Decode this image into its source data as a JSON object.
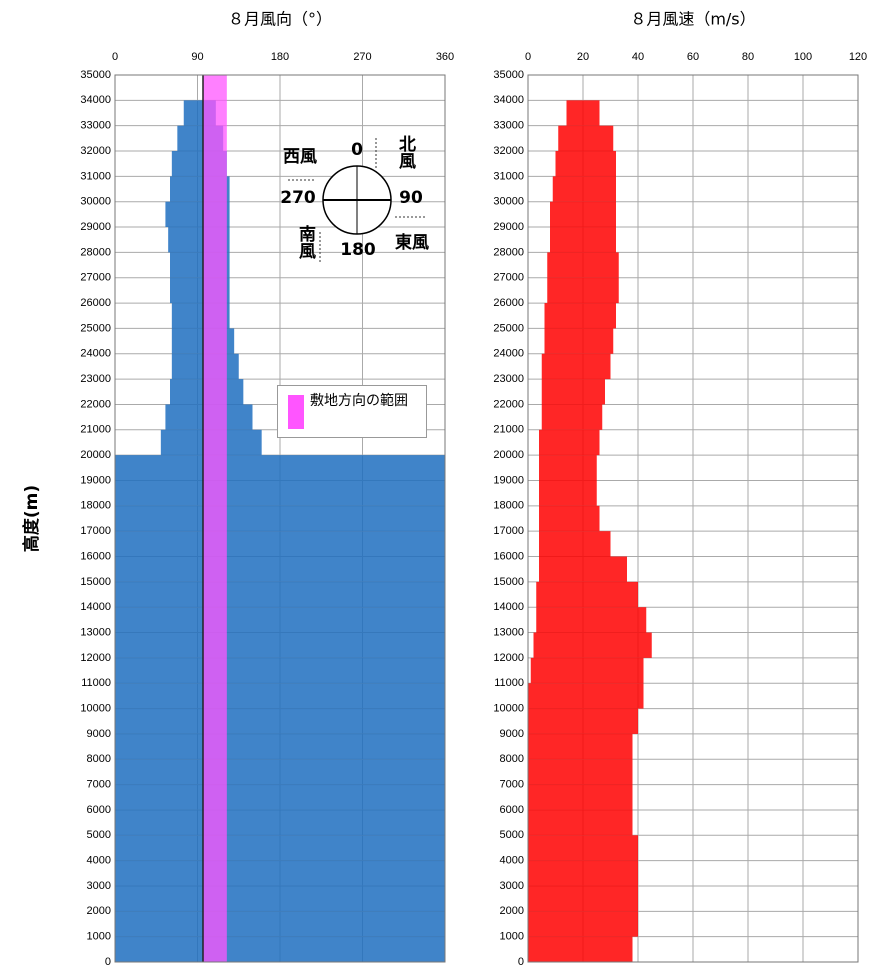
{
  "chart_data": [
    {
      "type": "range-scatter",
      "title": "８月風向（°）",
      "ylabel": "高度(m)",
      "xlim": [
        0,
        360
      ],
      "xticks": [
        0,
        90,
        180,
        270,
        360
      ],
      "ylim": [
        0,
        35000
      ],
      "yticks": [
        0,
        1000,
        2000,
        3000,
        4000,
        5000,
        6000,
        7000,
        8000,
        9000,
        10000,
        11000,
        12000,
        13000,
        14000,
        15000,
        16000,
        17000,
        18000,
        19000,
        20000,
        21000,
        22000,
        23000,
        24000,
        25000,
        26000,
        27000,
        28000,
        29000,
        30000,
        31000,
        32000,
        33000,
        34000,
        35000
      ],
      "grid": true,
      "color": "#1f6fc0",
      "y": [
        500,
        1500,
        2500,
        3500,
        4500,
        5500,
        6500,
        7500,
        8500,
        9500,
        10500,
        11500,
        12500,
        13500,
        14500,
        15500,
        16500,
        17500,
        18500,
        19500,
        20500,
        21500,
        22500,
        23500,
        24500,
        25500,
        26500,
        27500,
        28500,
        29500,
        30500,
        31500,
        32500,
        33500
      ],
      "low": [
        0,
        0,
        0,
        0,
        0,
        0,
        0,
        0,
        0,
        0,
        0,
        0,
        0,
        0,
        0,
        0,
        0,
        0,
        0,
        0,
        50,
        55,
        60,
        62,
        62,
        62,
        60,
        60,
        58,
        55,
        60,
        62,
        68,
        75
      ],
      "high": [
        360,
        360,
        360,
        360,
        360,
        360,
        360,
        360,
        360,
        360,
        360,
        360,
        360,
        360,
        360,
        360,
        360,
        360,
        360,
        360,
        160,
        150,
        140,
        135,
        130,
        125,
        125,
        125,
        125,
        125,
        125,
        122,
        118,
        110
      ],
      "highlight": {
        "name": "敷地方向の範囲",
        "range": [
          96,
          122
        ],
        "color": "#ff55ff"
      },
      "annotations": [
        "0",
        "北風",
        "西風",
        "270",
        "90",
        "南風",
        "180",
        "東風"
      ]
    },
    {
      "type": "range-scatter",
      "title": "８月風速（m/s）",
      "xlim": [
        0,
        120
      ],
      "xticks": [
        0,
        20,
        40,
        60,
        80,
        100,
        120
      ],
      "ylim": [
        0,
        35000
      ],
      "yticks": [
        0,
        1000,
        2000,
        3000,
        4000,
        5000,
        6000,
        7000,
        8000,
        9000,
        10000,
        11000,
        12000,
        13000,
        14000,
        15000,
        16000,
        17000,
        18000,
        19000,
        20000,
        21000,
        22000,
        23000,
        24000,
        25000,
        26000,
        27000,
        28000,
        29000,
        30000,
        31000,
        32000,
        33000,
        34000,
        35000
      ],
      "grid": true,
      "color": "#ff0000",
      "y": [
        500,
        1500,
        2500,
        3500,
        4500,
        5500,
        6500,
        7500,
        8500,
        9500,
        10500,
        11500,
        12500,
        13500,
        14500,
        15500,
        16500,
        17500,
        18500,
        19500,
        20500,
        21500,
        22500,
        23500,
        24500,
        25500,
        26500,
        27500,
        28500,
        29500,
        30500,
        31500,
        32500,
        33500
      ],
      "low": [
        0,
        0,
        0,
        0,
        0,
        0,
        0,
        0,
        0,
        0,
        0,
        1,
        2,
        3,
        3,
        4,
        4,
        4,
        4,
        4,
        4,
        5,
        5,
        5,
        6,
        6,
        7,
        7,
        8,
        8,
        9,
        10,
        11,
        14
      ],
      "high": [
        38,
        40,
        40,
        40,
        40,
        38,
        38,
        38,
        38,
        40,
        42,
        42,
        45,
        43,
        40,
        36,
        30,
        26,
        25,
        25,
        26,
        27,
        28,
        30,
        31,
        32,
        33,
        33,
        32,
        32,
        32,
        32,
        31,
        26
      ]
    }
  ]
}
